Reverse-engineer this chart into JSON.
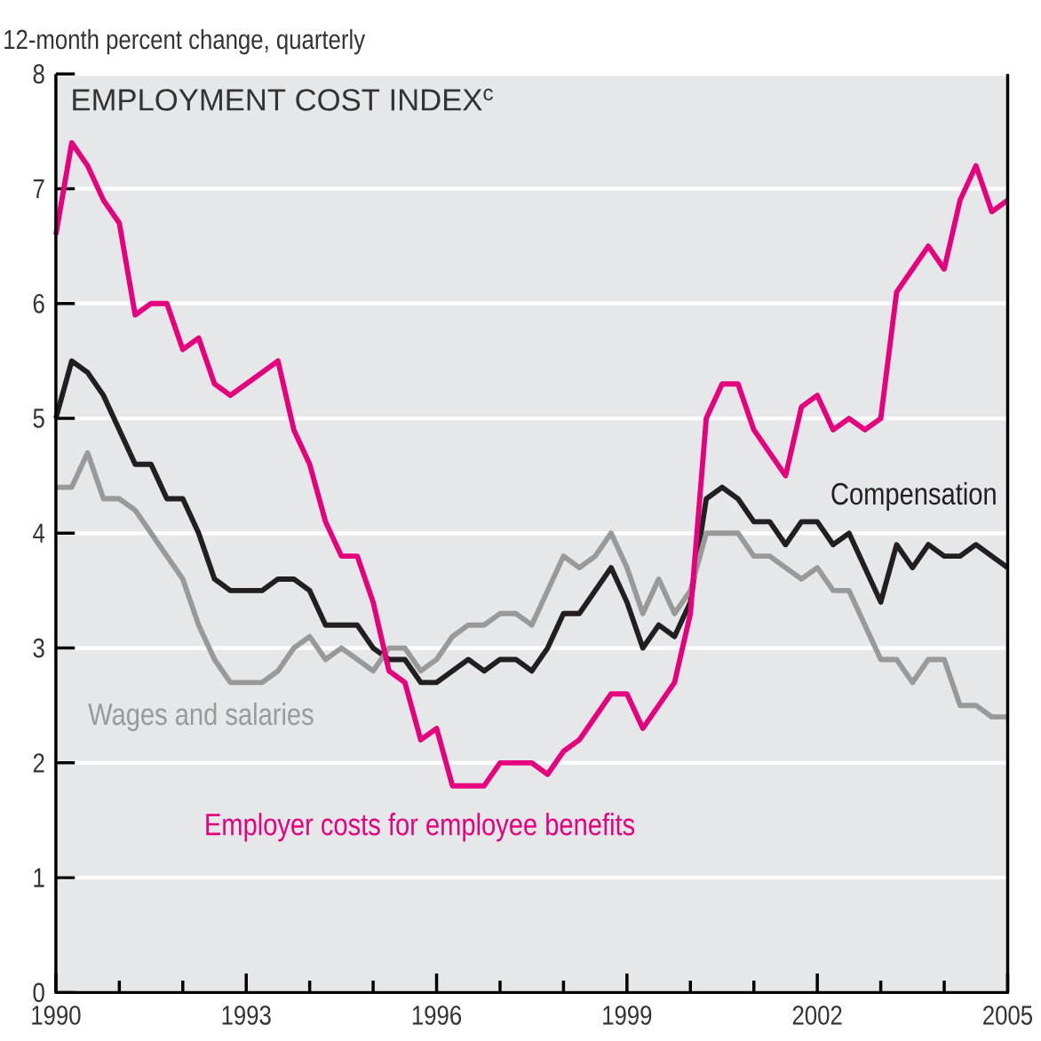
{
  "chart_data": {
    "type": "line",
    "title": "EMPLOYMENT COST INDEX$^{c}$",
    "ylabel": "12-month percent change, quarterly",
    "x": [
      1990,
      1990.25,
      1990.5,
      1990.75,
      1991,
      1991.25,
      1991.5,
      1991.75,
      1992,
      1992.25,
      1992.5,
      1992.75,
      1993,
      1993.25,
      1993.5,
      1993.75,
      1994,
      1994.25,
      1994.5,
      1994.75,
      1995,
      1995.25,
      1995.5,
      1995.75,
      1996,
      1996.25,
      1996.5,
      1996.75,
      1997,
      1997.25,
      1997.5,
      1997.75,
      1998,
      1998.25,
      1998.5,
      1998.75,
      1999,
      1999.25,
      1999.5,
      1999.75,
      2000,
      2000.25,
      2000.5,
      2000.75,
      2001,
      2001.25,
      2001.5,
      2001.75,
      2002,
      2002.25,
      2002.5,
      2002.75,
      2003,
      2003.25,
      2003.5,
      2003.75,
      2004,
      2004.25,
      2004.5,
      2004.75,
      2005
    ],
    "series": [
      {
        "name": "Compensation",
        "color": "#231f20",
        "values": [
          5.0,
          5.5,
          5.4,
          5.2,
          4.9,
          4.6,
          4.6,
          4.3,
          4.3,
          4.0,
          3.6,
          3.5,
          3.5,
          3.5,
          3.6,
          3.6,
          3.5,
          3.2,
          3.2,
          3.2,
          3.0,
          2.9,
          2.9,
          2.7,
          2.7,
          2.8,
          2.9,
          2.8,
          2.9,
          2.9,
          2.8,
          3.0,
          3.3,
          3.3,
          3.5,
          3.7,
          3.4,
          3.0,
          3.2,
          3.1,
          3.4,
          4.3,
          4.4,
          4.3,
          4.1,
          4.1,
          3.9,
          4.1,
          4.1,
          3.9,
          4.0,
          3.7,
          3.4,
          3.9,
          3.7,
          3.9,
          3.8,
          3.8,
          3.9,
          3.8,
          3.7
        ]
      },
      {
        "name": "Wages and salaries",
        "color": "#999999",
        "values": [
          4.4,
          4.4,
          4.7,
          4.3,
          4.3,
          4.2,
          4.0,
          3.8,
          3.6,
          3.2,
          2.9,
          2.7,
          2.7,
          2.7,
          2.8,
          3.0,
          3.1,
          2.9,
          3.0,
          2.9,
          2.8,
          3.0,
          3.0,
          2.8,
          2.9,
          3.1,
          3.2,
          3.2,
          3.3,
          3.3,
          3.2,
          3.5,
          3.8,
          3.7,
          3.8,
          4.0,
          3.7,
          3.3,
          3.6,
          3.3,
          3.5,
          4.0,
          4.0,
          4.0,
          3.8,
          3.8,
          3.7,
          3.6,
          3.7,
          3.5,
          3.5,
          3.2,
          2.9,
          2.9,
          2.7,
          2.9,
          2.9,
          2.5,
          2.5,
          2.4,
          2.4
        ]
      },
      {
        "name": "Employer costs for employee benefits",
        "color": "#e6007e",
        "values": [
          6.6,
          7.4,
          7.2,
          6.9,
          6.7,
          5.9,
          6.0,
          6.0,
          5.6,
          5.7,
          5.3,
          5.2,
          5.3,
          5.4,
          5.5,
          4.9,
          4.6,
          4.1,
          3.8,
          3.8,
          3.4,
          2.8,
          2.7,
          2.2,
          2.3,
          1.8,
          1.8,
          1.8,
          2.0,
          2.0,
          2.0,
          1.9,
          2.1,
          2.2,
          2.4,
          2.6,
          2.6,
          2.3,
          2.5,
          2.7,
          3.3,
          5.0,
          5.3,
          5.3,
          4.9,
          4.7,
          4.5,
          5.1,
          5.2,
          4.9,
          5.0,
          4.9,
          5.0,
          6.1,
          6.3,
          6.5,
          6.3,
          6.9,
          7.2,
          6.8,
          6.9
        ]
      }
    ],
    "xlim": [
      1990,
      2005
    ],
    "xticks": [
      1990,
      {
        "value": 1991,
        "label": null
      },
      {
        "value": 1992,
        "label": null
      },
      1993,
      {
        "value": 1994,
        "label": null
      },
      {
        "value": 1995,
        "label": null
      },
      1996,
      {
        "value": 1997,
        "label": null
      },
      {
        "value": 1998,
        "label": null
      },
      1999,
      {
        "value": 2000,
        "label": null
      },
      {
        "value": 2001,
        "label": null
      },
      2002,
      {
        "value": 2003,
        "label": null
      },
      {
        "value": 2004,
        "label": null
      },
      2005
    ],
    "ylim": [
      0,
      8
    ],
    "yticks": [
      0,
      1,
      2,
      3,
      4,
      5,
      6,
      7,
      8
    ],
    "grid": "y",
    "legend": false,
    "line_style": "solid"
  }
}
